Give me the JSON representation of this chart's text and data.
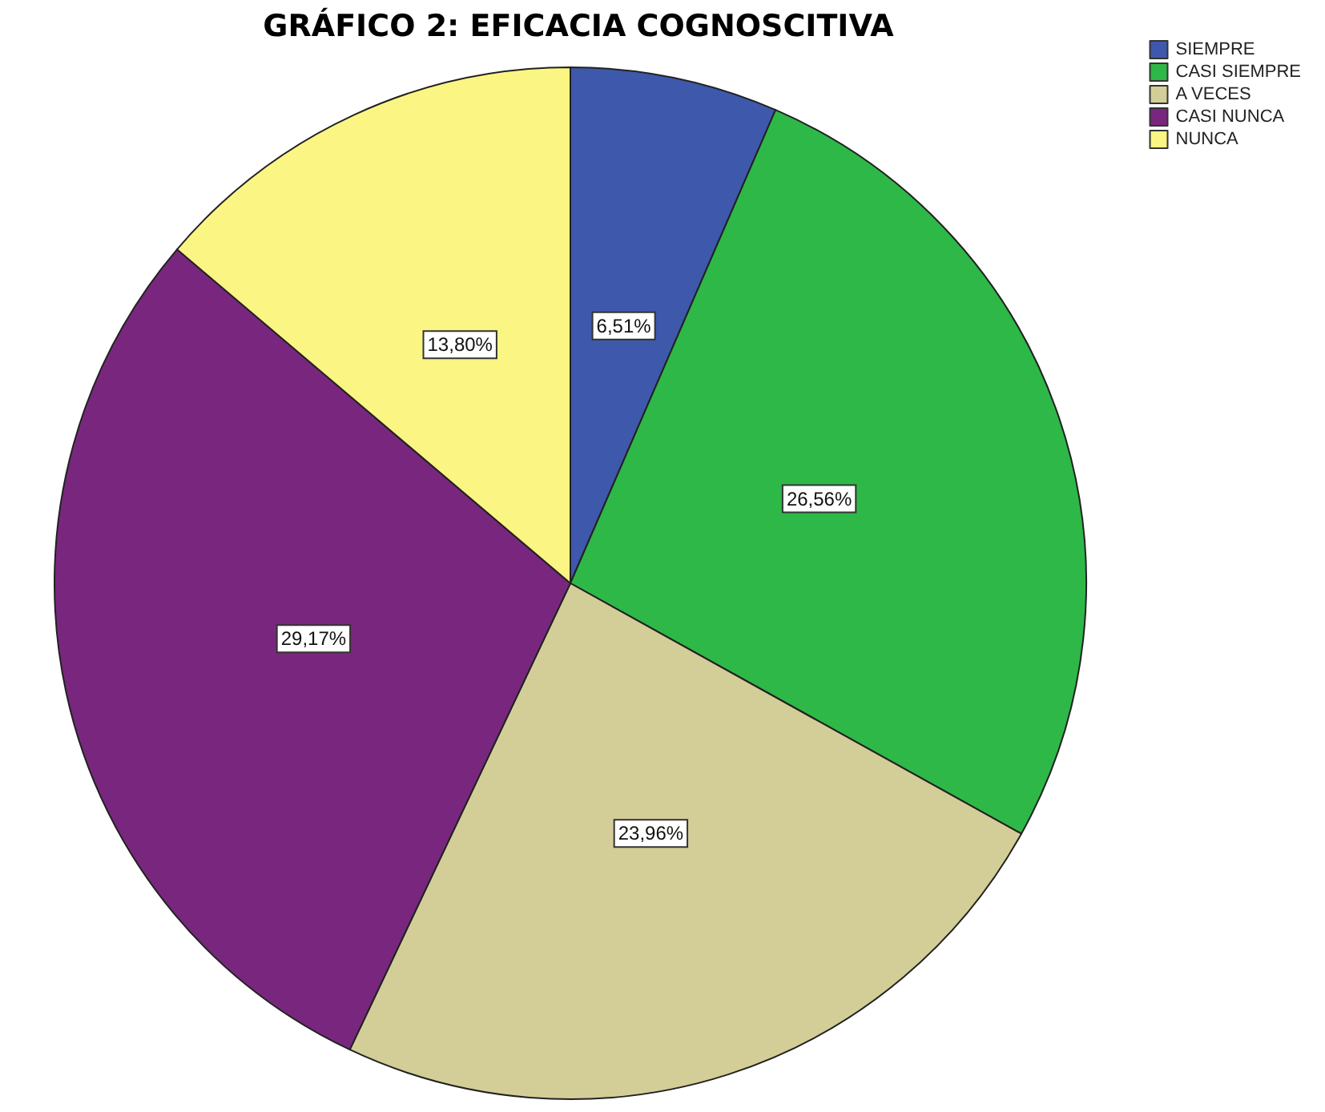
{
  "chart_data": {
    "type": "pie",
    "title": "GRÁFICO 2: EFICACIA COGNOSCITIVA",
    "categories": [
      "SIEMPRE",
      "CASI SIEMPRE",
      "A VECES",
      "CASI NUNCA",
      "NUNCA"
    ],
    "values": [
      6.51,
      26.56,
      23.96,
      29.17,
      13.8
    ],
    "value_labels": [
      "6,51%",
      "26,56%",
      "23,96%",
      "29,17%",
      "13,80%"
    ],
    "colors": [
      "#3e58ac",
      "#2eb848",
      "#d3ce97",
      "#79277e",
      "#fbf583"
    ],
    "legend": "top right"
  }
}
